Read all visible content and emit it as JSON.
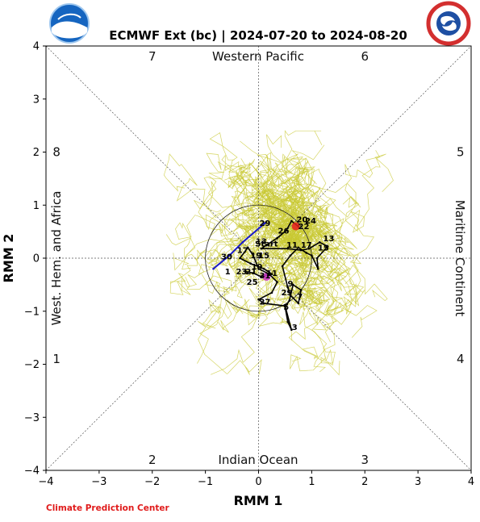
{
  "header": {
    "title": "ECMWF Ext (bc) | 2024-07-20 to 2024-08-20"
  },
  "logos": {
    "left": "NOAA",
    "right": "NATIONAL WEATHER SERVICE"
  },
  "credit": "Climate Prediction Center",
  "chart_data": {
    "type": "line",
    "title": "ECMWF Ext (bc) | 2024-07-20 to 2024-08-20",
    "xlabel": "RMM 1",
    "ylabel": "RMM 2",
    "xlim": [
      -4,
      4
    ],
    "ylim": [
      -4,
      4
    ],
    "xticks": [
      "−4",
      "−3",
      "−2",
      "−1",
      "0",
      "1",
      "2",
      "3",
      "4"
    ],
    "yticks": [
      "−4",
      "−3",
      "−2",
      "−1",
      "0",
      "1",
      "2",
      "3",
      "4"
    ],
    "grid": false,
    "unit_circle_radius": 1,
    "regions": {
      "top": "Western Pacific",
      "bottom": "Indian Ocean",
      "left": "West. Hem. and Africa",
      "right": "Maritime Continent"
    },
    "phases": [
      {
        "label": "1",
        "x": -3.8,
        "y": -1.9
      },
      {
        "label": "2",
        "x": -2.0,
        "y": -3.8
      },
      {
        "label": "3",
        "x": 2.0,
        "y": -3.8
      },
      {
        "label": "4",
        "x": 3.8,
        "y": -1.9
      },
      {
        "label": "5",
        "x": 3.8,
        "y": 2.0
      },
      {
        "label": "6",
        "x": 2.0,
        "y": 3.8
      },
      {
        "label": "7",
        "x": -2.0,
        "y": 3.8
      },
      {
        "label": "8",
        "x": -3.8,
        "y": 2.0
      }
    ],
    "colors": {
      "ensemble": "#c8c832",
      "observed": "#1a1acc",
      "forecast": "#000000",
      "start_marker": "#e61e1e",
      "end_marker": "#cc33cc",
      "credit": "#e01b1b"
    },
    "series": [
      {
        "role": "observed",
        "points": [
          [
            0.12,
            0.66
          ],
          [
            -0.3,
            0.3
          ],
          [
            -0.55,
            0.05
          ],
          [
            -0.85,
            -0.2
          ]
        ],
        "labels": [
          {
            "text": "29",
            "x": 0.12,
            "y": 0.66
          }
        ]
      },
      {
        "role": "forecast",
        "points": [
          [
            0.75,
            0.6
          ],
          [
            0.62,
            0.7
          ],
          [
            0.52,
            0.52
          ],
          [
            0.35,
            0.38
          ],
          [
            0.05,
            0.18
          ],
          [
            0.55,
            0.18
          ],
          [
            0.8,
            0.15
          ],
          [
            0.95,
            0.18
          ],
          [
            1.15,
            0.3
          ],
          [
            1.3,
            0.22
          ],
          [
            1.1,
            0.0
          ],
          [
            1.12,
            -0.2
          ],
          [
            1.0,
            0.05
          ],
          [
            0.9,
            0.1
          ],
          [
            0.75,
            0.2
          ],
          [
            0.6,
            0.05
          ],
          [
            0.45,
            -0.15
          ],
          [
            0.55,
            -0.55
          ],
          [
            0.6,
            -0.7
          ],
          [
            0.75,
            -0.85
          ],
          [
            0.8,
            -0.6
          ],
          [
            0.65,
            -0.5
          ],
          [
            0.58,
            -0.8
          ],
          [
            0.5,
            -0.92
          ],
          [
            0.55,
            -1.2
          ],
          [
            0.62,
            -1.35
          ],
          [
            0.5,
            -0.9
          ],
          [
            0.1,
            -0.85
          ],
          [
            0.0,
            -0.78
          ],
          [
            0.25,
            -0.65
          ],
          [
            0.35,
            -0.45
          ],
          [
            0.2,
            -0.3
          ],
          [
            0.0,
            -0.2
          ],
          [
            -0.1,
            0.05
          ],
          [
            -0.2,
            0.2
          ],
          [
            -0.35,
            0.0
          ],
          [
            -0.15,
            -0.1
          ],
          [
            0.1,
            -0.2
          ],
          [
            0.25,
            -0.3
          ],
          [
            0.05,
            -0.35
          ],
          [
            -0.1,
            -0.28
          ],
          [
            -0.25,
            -0.25
          ]
        ],
        "labels": [
          {
            "text": "26",
            "x": 0.47,
            "y": 0.52
          },
          {
            "text": "20",
            "x": 0.82,
            "y": 0.73
          },
          {
            "text": "24",
            "x": 0.98,
            "y": 0.71
          },
          {
            "text": "22",
            "x": 0.85,
            "y": 0.6
          },
          {
            "text": "13",
            "x": 1.32,
            "y": 0.37
          },
          {
            "text": "11",
            "x": 0.63,
            "y": 0.25
          },
          {
            "text": "17",
            "x": 0.9,
            "y": 0.25
          },
          {
            "text": "15",
            "x": 1.22,
            "y": 0.2
          },
          {
            "text": "Start",
            "x": 0.15,
            "y": 0.27
          },
          {
            "text": "13",
            "x": 0.05,
            "y": 0.32
          },
          {
            "text": "17",
            "x": -0.3,
            "y": 0.15
          },
          {
            "text": "30",
            "x": -0.6,
            "y": 0.03
          },
          {
            "text": "19",
            "x": -0.05,
            "y": 0.05
          },
          {
            "text": "15",
            "x": 0.1,
            "y": 0.05
          },
          {
            "text": "1",
            "x": -0.58,
            "y": -0.25
          },
          {
            "text": "23",
            "x": -0.32,
            "y": -0.25
          },
          {
            "text": "21",
            "x": -0.14,
            "y": -0.25
          },
          {
            "text": "19",
            "x": -0.03,
            "y": -0.16
          },
          {
            "text": "31",
            "x": 0.12,
            "y": -0.33
          },
          {
            "text": "11",
            "x": 0.25,
            "y": -0.28
          },
          {
            "text": "25",
            "x": -0.12,
            "y": -0.45
          },
          {
            "text": "9",
            "x": 0.6,
            "y": -0.48
          },
          {
            "text": "29",
            "x": 0.53,
            "y": -0.65
          },
          {
            "text": "7",
            "x": 0.78,
            "y": -0.72
          },
          {
            "text": "27",
            "x": 0.12,
            "y": -0.82
          },
          {
            "text": "5",
            "x": 0.52,
            "y": -0.92
          },
          {
            "text": "3",
            "x": 0.68,
            "y": -1.3
          }
        ]
      }
    ],
    "markers": [
      {
        "role": "start",
        "x": 0.7,
        "y": 0.6
      },
      {
        "role": "end",
        "x": 0.15,
        "y": -0.35
      }
    ]
  }
}
